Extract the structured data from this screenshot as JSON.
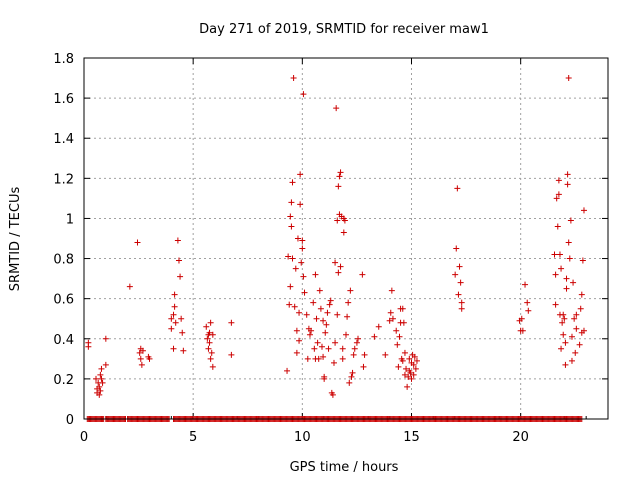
{
  "chart_data": {
    "type": "scatter",
    "title": "Day 271 of 2019, SRMTID for receiver maw1",
    "xlabel": "GPS time / hours",
    "ylabel": "SRMTID / TECUs",
    "xlim": [
      0,
      24
    ],
    "ylim": [
      0,
      1.8
    ],
    "xticks": [
      0,
      5,
      10,
      15,
      20
    ],
    "yticks": [
      0,
      0.2,
      0.4,
      0.6,
      0.8,
      1,
      1.2,
      1.4,
      1.6,
      1.8
    ],
    "ytick_labels": [
      "0",
      "0.2",
      "0.4",
      "0.6",
      "0.8",
      "1",
      "1.2",
      "1.4",
      "1.6",
      "1.8"
    ],
    "grid": true,
    "marker": "+",
    "series": [
      {
        "name": "SRMTID",
        "color": "#cc0000",
        "points": [
          [
            0.2,
            0.38
          ],
          [
            0.2,
            0.36
          ],
          [
            0.55,
            0.2
          ],
          [
            0.6,
            0.15
          ],
          [
            0.6,
            0.13
          ],
          [
            0.65,
            0.18
          ],
          [
            0.7,
            0.12
          ],
          [
            0.7,
            0.16
          ],
          [
            0.75,
            0.22
          ],
          [
            0.75,
            0.14
          ],
          [
            0.8,
            0.25
          ],
          [
            0.8,
            0.2
          ],
          [
            0.85,
            0.18
          ],
          [
            1.0,
            0.27
          ],
          [
            1.0,
            0.4
          ],
          [
            2.1,
            0.66
          ],
          [
            2.45,
            0.88
          ],
          [
            2.55,
            0.33
          ],
          [
            2.6,
            0.35
          ],
          [
            2.6,
            0.3
          ],
          [
            2.65,
            0.27
          ],
          [
            2.7,
            0.34
          ],
          [
            2.95,
            0.31
          ],
          [
            3.0,
            0.3
          ],
          [
            4.0,
            0.5
          ],
          [
            4.0,
            0.45
          ],
          [
            4.1,
            0.35
          ],
          [
            4.1,
            0.52
          ],
          [
            4.15,
            0.62
          ],
          [
            4.15,
            0.56
          ],
          [
            4.2,
            0.48
          ],
          [
            4.3,
            0.89
          ],
          [
            4.35,
            0.79
          ],
          [
            4.4,
            0.71
          ],
          [
            4.45,
            0.5
          ],
          [
            4.5,
            0.43
          ],
          [
            4.55,
            0.34
          ],
          [
            5.6,
            0.46
          ],
          [
            5.65,
            0.4
          ],
          [
            5.7,
            0.42
          ],
          [
            5.7,
            0.35
          ],
          [
            5.75,
            0.43
          ],
          [
            5.75,
            0.38
          ],
          [
            5.8,
            0.48
          ],
          [
            5.8,
            0.3
          ],
          [
            5.85,
            0.33
          ],
          [
            5.9,
            0.26
          ],
          [
            5.9,
            0.42
          ],
          [
            6.75,
            0.32
          ],
          [
            6.75,
            0.48
          ],
          [
            9.3,
            0.24
          ],
          [
            9.35,
            0.81
          ],
          [
            9.4,
            0.57
          ],
          [
            9.45,
            0.66
          ],
          [
            9.45,
            1.01
          ],
          [
            9.5,
            0.96
          ],
          [
            9.5,
            1.08
          ],
          [
            9.55,
            0.8
          ],
          [
            9.55,
            1.18
          ],
          [
            9.6,
            1.7
          ],
          [
            9.65,
            0.56
          ],
          [
            9.7,
            0.75
          ],
          [
            9.75,
            0.33
          ],
          [
            9.75,
            0.44
          ],
          [
            9.8,
            0.9
          ],
          [
            9.85,
            0.53
          ],
          [
            9.85,
            0.39
          ],
          [
            9.9,
            1.07
          ],
          [
            9.9,
            1.22
          ],
          [
            9.95,
            0.78
          ],
          [
            10.0,
            0.85
          ],
          [
            10.0,
            0.89
          ],
          [
            10.05,
            1.62
          ],
          [
            10.05,
            0.71
          ],
          [
            10.1,
            0.63
          ],
          [
            10.2,
            0.52
          ],
          [
            10.25,
            0.3
          ],
          [
            10.3,
            0.45
          ],
          [
            10.35,
            0.42
          ],
          [
            10.4,
            0.44
          ],
          [
            10.5,
            0.58
          ],
          [
            10.55,
            0.35
          ],
          [
            10.6,
            0.3
          ],
          [
            10.6,
            0.72
          ],
          [
            10.65,
            0.5
          ],
          [
            10.7,
            0.38
          ],
          [
            10.75,
            0.3
          ],
          [
            10.8,
            0.64
          ],
          [
            10.85,
            0.55
          ],
          [
            10.9,
            0.36
          ],
          [
            10.95,
            0.49
          ],
          [
            10.95,
            0.31
          ],
          [
            11.0,
            0.21
          ],
          [
            11.0,
            0.2
          ],
          [
            11.05,
            0.43
          ],
          [
            11.1,
            0.47
          ],
          [
            11.15,
            0.53
          ],
          [
            11.2,
            0.35
          ],
          [
            11.25,
            0.57
          ],
          [
            11.3,
            0.59
          ],
          [
            11.35,
            0.13
          ],
          [
            11.4,
            0.12
          ],
          [
            11.45,
            0.28
          ],
          [
            11.5,
            0.38
          ],
          [
            11.5,
            0.78
          ],
          [
            11.55,
            1.55
          ],
          [
            11.6,
            0.99
          ],
          [
            11.6,
            0.52
          ],
          [
            11.65,
            0.73
          ],
          [
            11.65,
            1.16
          ],
          [
            11.7,
            1.02
          ],
          [
            11.7,
            1.21
          ],
          [
            11.75,
            0.76
          ],
          [
            11.75,
            1.23
          ],
          [
            11.8,
            1.01
          ],
          [
            11.85,
            0.35
          ],
          [
            11.85,
            0.3
          ],
          [
            11.9,
            0.93
          ],
          [
            11.9,
            1.0
          ],
          [
            11.95,
            0.99
          ],
          [
            12.0,
            0.42
          ],
          [
            12.05,
            0.51
          ],
          [
            12.1,
            0.58
          ],
          [
            12.15,
            0.18
          ],
          [
            12.2,
            0.64
          ],
          [
            12.25,
            0.21
          ],
          [
            12.3,
            0.23
          ],
          [
            12.35,
            0.32
          ],
          [
            12.4,
            0.35
          ],
          [
            12.5,
            0.38
          ],
          [
            12.55,
            0.4
          ],
          [
            12.75,
            0.72
          ],
          [
            12.8,
            0.26
          ],
          [
            12.85,
            0.32
          ],
          [
            13.3,
            0.41
          ],
          [
            13.5,
            0.46
          ],
          [
            13.8,
            0.32
          ],
          [
            14.0,
            0.49
          ],
          [
            14.05,
            0.53
          ],
          [
            14.1,
            0.64
          ],
          [
            14.15,
            0.5
          ],
          [
            14.3,
            0.44
          ],
          [
            14.35,
            0.37
          ],
          [
            14.4,
            0.26
          ],
          [
            14.45,
            0.41
          ],
          [
            14.5,
            0.48
          ],
          [
            14.5,
            0.55
          ],
          [
            14.55,
            0.3
          ],
          [
            14.6,
            0.29
          ],
          [
            14.6,
            0.55
          ],
          [
            14.65,
            0.48
          ],
          [
            14.7,
            0.33
          ],
          [
            14.7,
            0.22
          ],
          [
            14.75,
            0.25
          ],
          [
            14.8,
            0.16
          ],
          [
            14.85,
            0.21
          ],
          [
            14.9,
            0.24
          ],
          [
            14.9,
            0.3
          ],
          [
            14.95,
            0.23
          ],
          [
            15.0,
            0.28
          ],
          [
            15.0,
            0.2
          ],
          [
            15.05,
            0.32
          ],
          [
            15.1,
            0.22
          ],
          [
            15.1,
            0.27
          ],
          [
            15.15,
            0.31
          ],
          [
            15.2,
            0.25
          ],
          [
            15.25,
            0.29
          ],
          [
            17.0,
            0.72
          ],
          [
            17.05,
            0.85
          ],
          [
            17.1,
            1.15
          ],
          [
            17.15,
            0.62
          ],
          [
            17.2,
            0.76
          ],
          [
            17.25,
            0.68
          ],
          [
            17.3,
            0.55
          ],
          [
            17.3,
            0.58
          ],
          [
            19.95,
            0.49
          ],
          [
            20.0,
            0.44
          ],
          [
            20.05,
            0.5
          ],
          [
            20.1,
            0.44
          ],
          [
            20.2,
            0.67
          ],
          [
            20.3,
            0.58
          ],
          [
            20.35,
            0.54
          ],
          [
            21.55,
            0.82
          ],
          [
            21.6,
            0.72
          ],
          [
            21.6,
            0.57
          ],
          [
            21.65,
            1.1
          ],
          [
            21.7,
            0.96
          ],
          [
            21.75,
            1.12
          ],
          [
            21.75,
            1.19
          ],
          [
            21.8,
            0.82
          ],
          [
            21.8,
            0.52
          ],
          [
            21.85,
            0.75
          ],
          [
            21.85,
            0.35
          ],
          [
            21.9,
            0.48
          ],
          [
            21.95,
            0.52
          ],
          [
            21.95,
            0.42
          ],
          [
            22.0,
            0.5
          ],
          [
            22.05,
            0.38
          ],
          [
            22.05,
            0.27
          ],
          [
            22.1,
            0.65
          ],
          [
            22.1,
            0.7
          ],
          [
            22.15,
            1.22
          ],
          [
            22.15,
            1.17
          ],
          [
            22.2,
            1.7
          ],
          [
            22.2,
            0.88
          ],
          [
            22.25,
            0.8
          ],
          [
            22.3,
            0.99
          ],
          [
            22.35,
            0.41
          ],
          [
            22.35,
            0.29
          ],
          [
            22.4,
            0.68
          ],
          [
            22.45,
            0.5
          ],
          [
            22.5,
            0.33
          ],
          [
            22.55,
            0.45
          ],
          [
            22.55,
            0.52
          ],
          [
            22.7,
            0.37
          ],
          [
            22.75,
            0.55
          ],
          [
            22.8,
            0.62
          ],
          [
            22.8,
            0.43
          ],
          [
            22.85,
            0.79
          ],
          [
            22.9,
            1.04
          ],
          [
            22.9,
            0.44
          ]
        ],
        "zero_band": [
          [
            0.15,
            0.9
          ],
          [
            1.0,
            1.9
          ],
          [
            2.0,
            3.9
          ],
          [
            4.1,
            22.8
          ]
        ]
      }
    ]
  }
}
